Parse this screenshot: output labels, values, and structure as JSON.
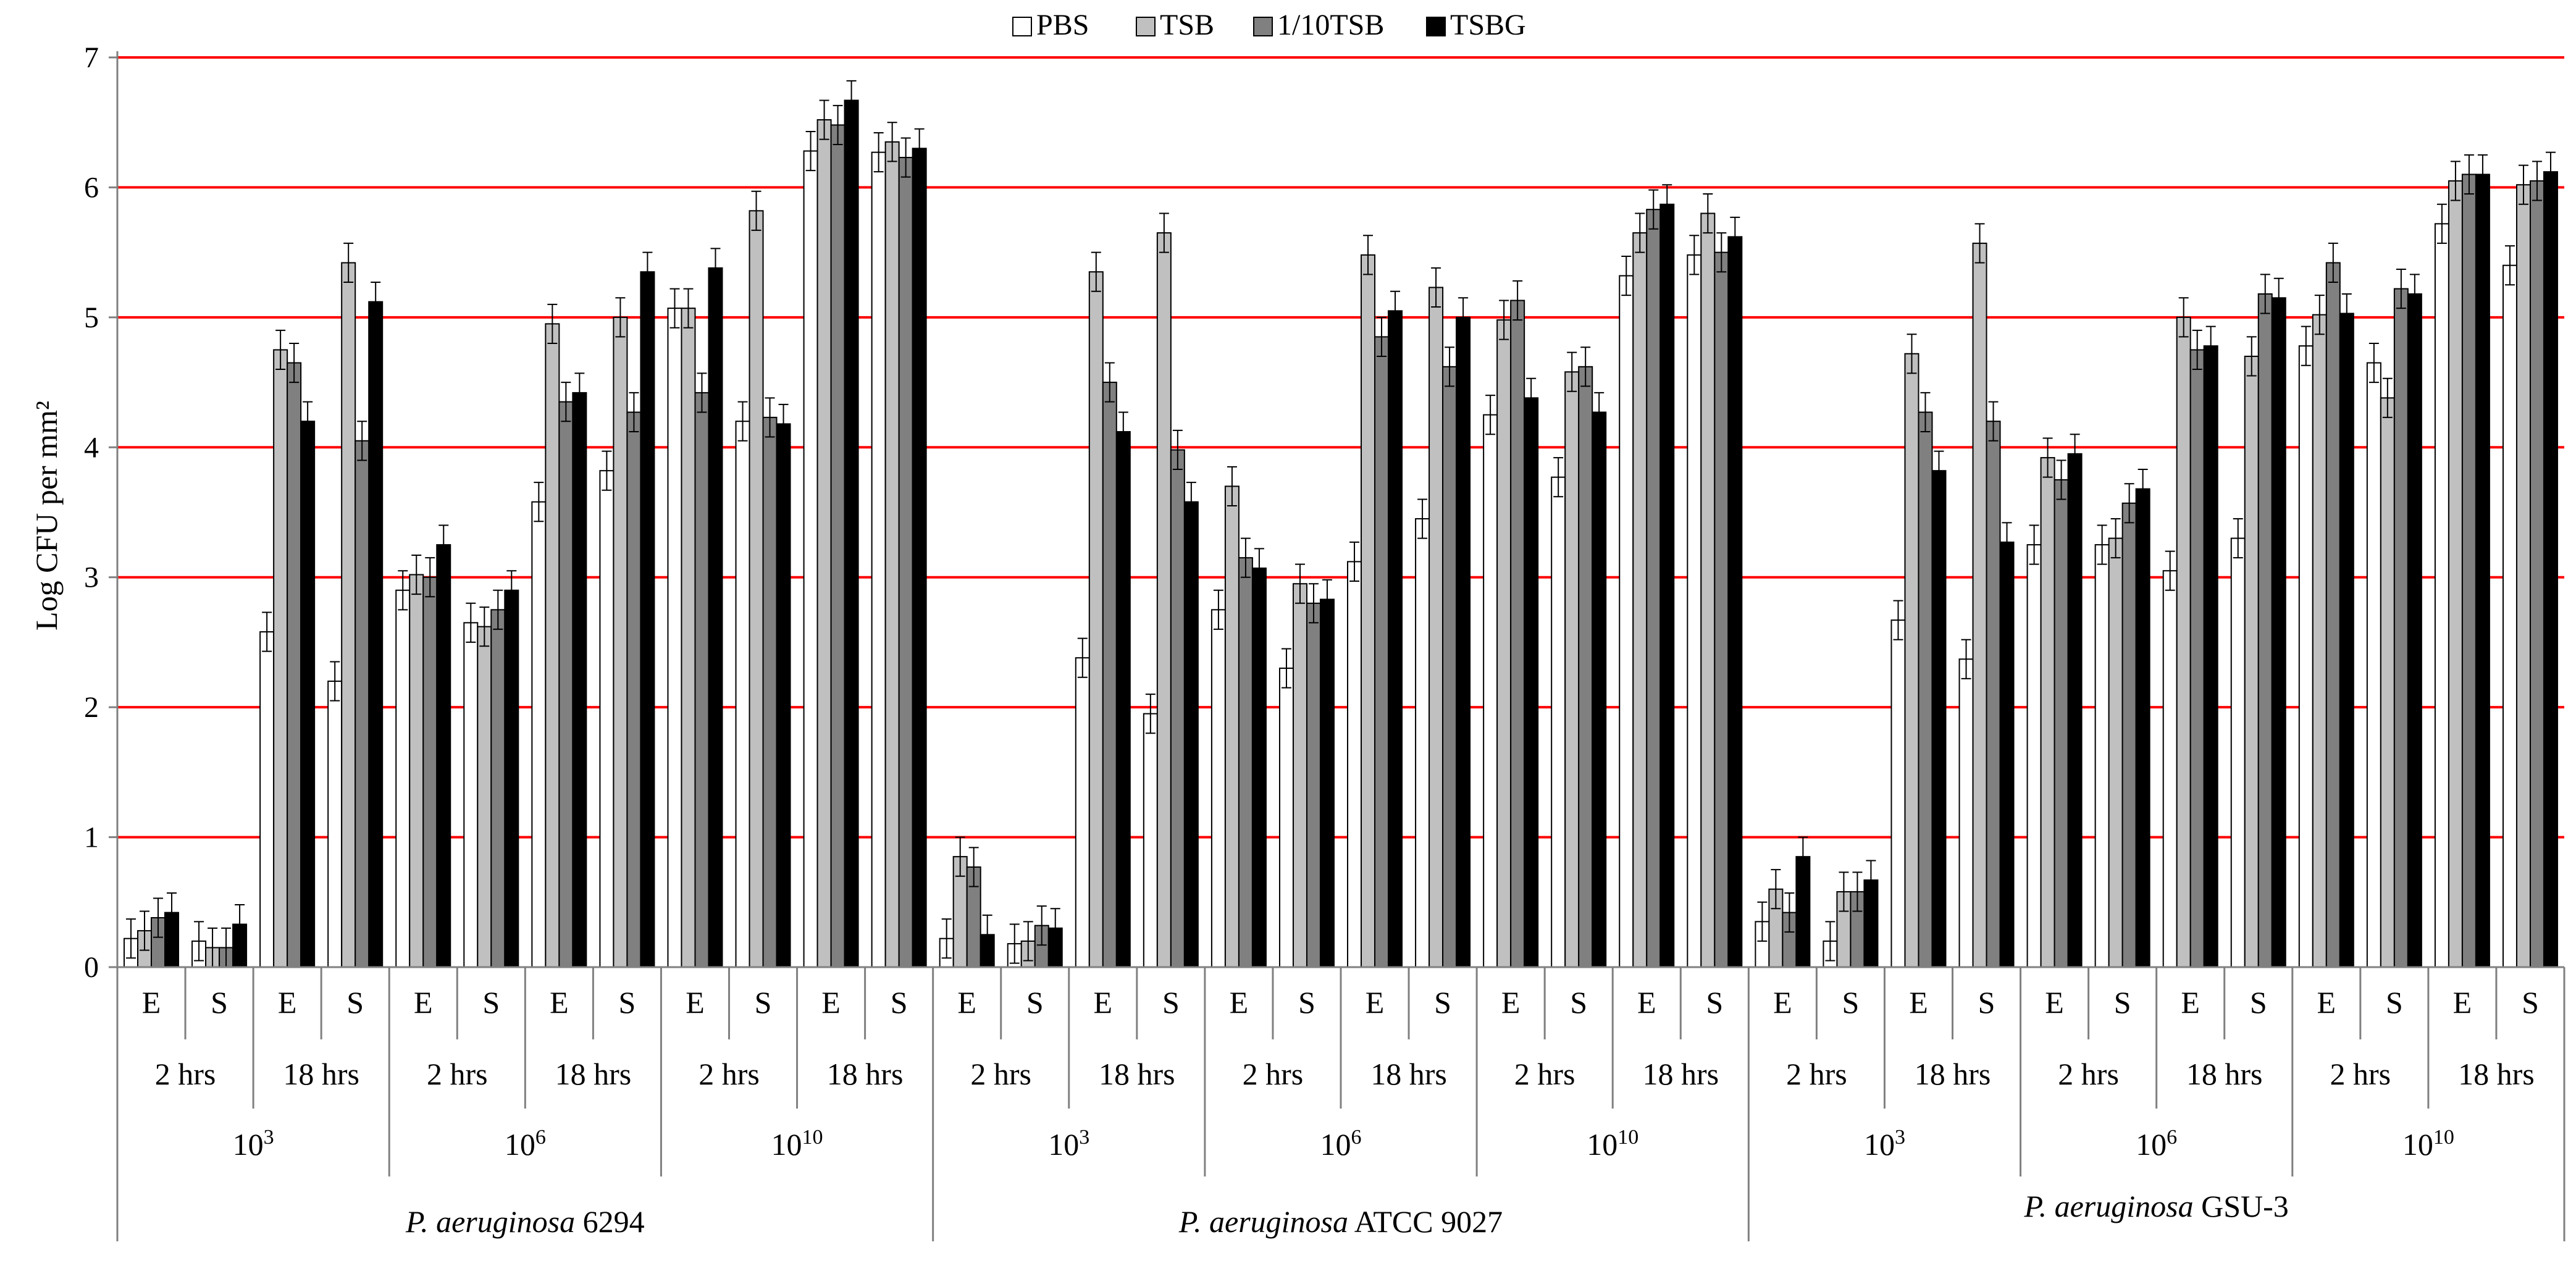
{
  "chart_data": {
    "type": "bar",
    "ylabel": "Log CFU per mm²",
    "ylim": [
      0,
      7
    ],
    "yticks": [
      "0",
      "1",
      "2",
      "3",
      "4",
      "5",
      "6",
      "7"
    ],
    "grid": true,
    "legend_position": "top-center",
    "colors": {
      "PBS": "#ffffff",
      "TSB": "#c0c0c0",
      "1/10TSB": "#808080",
      "TSBG": "#000000",
      "grid": "#ff0000"
    },
    "series_names": [
      "PBS",
      "TSB",
      "1/10TSB",
      "TSBG"
    ],
    "level1_labels": [
      "E",
      "S"
    ],
    "level2_labels": [
      "2 hrs",
      "18 hrs"
    ],
    "level3_labels": [
      "10",
      "10",
      "10"
    ],
    "level3_exponents": [
      "3",
      "6",
      "10"
    ],
    "strains": [
      {
        "italic": "P. aeruginosa",
        "suffix": " 6294"
      },
      {
        "italic": "P. aeruginosa",
        "suffix": " ATCC 9027"
      },
      {
        "italic": "P. aeruginosa",
        "suffix": " GSU-3"
      }
    ],
    "values": [
      [
        [
          0.22,
          0.28,
          0.38,
          0.42
        ],
        [
          0.2,
          0.15,
          0.15,
          0.33
        ],
        [
          2.58,
          4.75,
          4.65,
          4.2
        ],
        [
          2.2,
          5.42,
          4.05,
          5.12
        ],
        [
          2.9,
          3.02,
          3.0,
          3.25
        ],
        [
          2.65,
          2.62,
          2.75,
          2.9
        ],
        [
          3.58,
          4.95,
          4.35,
          4.42
        ],
        [
          3.82,
          5.0,
          4.27,
          5.35
        ],
        [
          5.07,
          5.07,
          4.42,
          5.38
        ],
        [
          4.2,
          5.82,
          4.23,
          4.18
        ],
        [
          6.28,
          6.52,
          6.48,
          6.67
        ],
        [
          6.27,
          6.35,
          6.23,
          6.3
        ]
      ],
      [
        [
          0.22,
          0.85,
          0.77,
          0.25
        ],
        [
          0.18,
          0.2,
          0.32,
          0.3
        ],
        [
          2.38,
          5.35,
          4.5,
          4.12
        ],
        [
          1.95,
          5.65,
          3.98,
          3.58
        ],
        [
          2.75,
          3.7,
          3.15,
          3.07
        ],
        [
          2.3,
          2.95,
          2.8,
          2.83
        ],
        [
          3.12,
          5.48,
          4.85,
          5.05
        ],
        [
          3.45,
          5.23,
          4.62,
          5.0
        ],
        [
          4.25,
          4.98,
          5.13,
          4.38
        ],
        [
          3.77,
          4.58,
          4.62,
          4.27
        ],
        [
          5.32,
          5.65,
          5.83,
          5.87
        ],
        [
          5.48,
          5.8,
          5.5,
          5.62
        ]
      ],
      [
        [
          0.35,
          0.6,
          0.42,
          0.85
        ],
        [
          0.2,
          0.58,
          0.58,
          0.67
        ],
        [
          2.67,
          4.72,
          4.27,
          3.82
        ],
        [
          2.37,
          5.57,
          4.2,
          3.27
        ],
        [
          3.25,
          3.92,
          3.75,
          3.95
        ],
        [
          3.25,
          3.3,
          3.57,
          3.68
        ],
        [
          3.05,
          5.0,
          4.75,
          4.78
        ],
        [
          3.3,
          4.7,
          5.18,
          5.15
        ],
        [
          4.78,
          5.02,
          5.42,
          5.03
        ],
        [
          4.65,
          4.38,
          5.22,
          5.18
        ],
        [
          5.72,
          6.05,
          6.1,
          6.1
        ],
        [
          5.4,
          6.02,
          6.05,
          6.12
        ]
      ]
    ],
    "errors": [
      [
        [
          0.15,
          0.15,
          0.15,
          0.15
        ],
        [
          0.15,
          0.15,
          0.15,
          0.15
        ],
        [
          0.15,
          0.15,
          0.15,
          0.15
        ],
        [
          0.15,
          0.15,
          0.15,
          0.15
        ],
        [
          0.15,
          0.15,
          0.15,
          0.15
        ],
        [
          0.15,
          0.15,
          0.15,
          0.15
        ],
        [
          0.15,
          0.15,
          0.15,
          0.15
        ],
        [
          0.15,
          0.15,
          0.15,
          0.15
        ],
        [
          0.15,
          0.15,
          0.15,
          0.15
        ],
        [
          0.15,
          0.15,
          0.15,
          0.15
        ],
        [
          0.15,
          0.15,
          0.15,
          0.15
        ],
        [
          0.15,
          0.15,
          0.15,
          0.15
        ]
      ],
      [
        [
          0.15,
          0.15,
          0.15,
          0.15
        ],
        [
          0.15,
          0.15,
          0.15,
          0.15
        ],
        [
          0.15,
          0.15,
          0.15,
          0.15
        ],
        [
          0.15,
          0.15,
          0.15,
          0.15
        ],
        [
          0.15,
          0.15,
          0.15,
          0.15
        ],
        [
          0.15,
          0.15,
          0.15,
          0.15
        ],
        [
          0.15,
          0.15,
          0.15,
          0.15
        ],
        [
          0.15,
          0.15,
          0.15,
          0.15
        ],
        [
          0.15,
          0.15,
          0.15,
          0.15
        ],
        [
          0.15,
          0.15,
          0.15,
          0.15
        ],
        [
          0.15,
          0.15,
          0.15,
          0.15
        ],
        [
          0.15,
          0.15,
          0.15,
          0.15
        ]
      ],
      [
        [
          0.15,
          0.15,
          0.15,
          0.15
        ],
        [
          0.15,
          0.15,
          0.15,
          0.15
        ],
        [
          0.15,
          0.15,
          0.15,
          0.15
        ],
        [
          0.15,
          0.15,
          0.15,
          0.15
        ],
        [
          0.15,
          0.15,
          0.15,
          0.15
        ],
        [
          0.15,
          0.15,
          0.15,
          0.15
        ],
        [
          0.15,
          0.15,
          0.15,
          0.15
        ],
        [
          0.15,
          0.15,
          0.15,
          0.15
        ],
        [
          0.15,
          0.15,
          0.15,
          0.15
        ],
        [
          0.15,
          0.15,
          0.15,
          0.15
        ],
        [
          0.15,
          0.15,
          0.15,
          0.15
        ],
        [
          0.15,
          0.15,
          0.15,
          0.15
        ]
      ]
    ]
  }
}
